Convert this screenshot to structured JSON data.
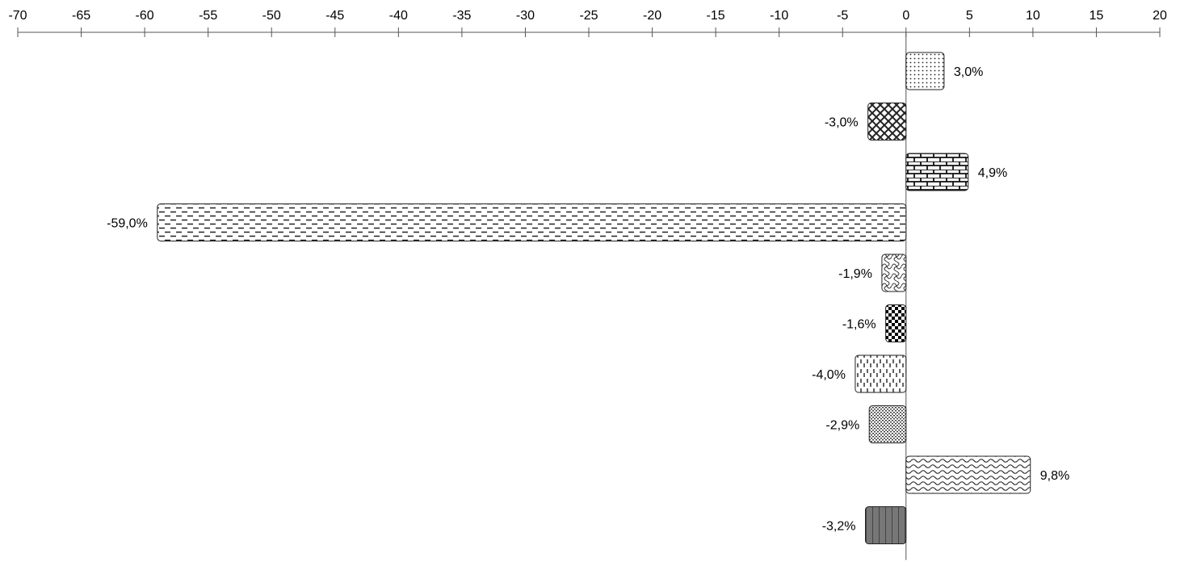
{
  "chart_data": {
    "type": "bar",
    "orientation": "horizontal",
    "xlim": [
      -70,
      20
    ],
    "x_ticks": [
      -70,
      -65,
      -60,
      -55,
      -50,
      -45,
      -40,
      -35,
      -30,
      -25,
      -20,
      -15,
      -10,
      -5,
      0,
      5,
      10,
      15,
      20
    ],
    "x_tick_labels": [
      "-70",
      "-65",
      "-60",
      "-55",
      "-50",
      "-45",
      "-40",
      "-35",
      "-30",
      "-25",
      "-20",
      "-15",
      "-10",
      "-5",
      "0",
      "5",
      "10",
      "15",
      "20"
    ],
    "axis_position": "top",
    "grid": false,
    "legend": "none",
    "values": [
      3.0,
      -3.0,
      4.9,
      -59.0,
      -1.9,
      -1.6,
      -4.0,
      -2.9,
      9.8,
      -3.2
    ],
    "data_labels": [
      "3,0%",
      "-3,0%",
      "4,9%",
      "-59,0%",
      "-1,9%",
      "-1,6%",
      "-4,0%",
      "-2,9%",
      "9,8%",
      "-3,2%"
    ],
    "patterns": [
      "dots",
      "crosshatch-diagonal",
      "brick",
      "dashes",
      "weave",
      "checker",
      "vertical-dashes",
      "dense-dots",
      "waves",
      "vertical-stripes-gray"
    ]
  }
}
